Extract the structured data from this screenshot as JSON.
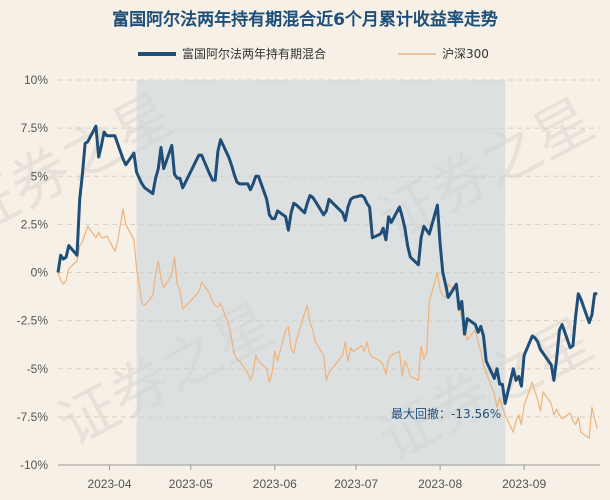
{
  "chart_data": {
    "type": "line",
    "title": "富国阿尔法两年持有期混合近6个月累计收益率走势",
    "watermark": "证券之星",
    "ylim": [
      -10,
      10
    ],
    "y_ticks": [
      10,
      7.5,
      5,
      2.5,
      0,
      -2.5,
      -5,
      -7.5,
      -10
    ],
    "y_tick_labels": [
      "10%",
      "7.5%",
      "5%",
      "2.5%",
      "0%",
      "-2.5%",
      "-5%",
      "-7.5%",
      "-10%"
    ],
    "x_ticks": [
      "2023-04",
      "2023-05",
      "2023-06",
      "2023-07",
      "2023-08",
      "2023-09"
    ],
    "x_tick_dates": [
      "2023-04-01",
      "2023-05-01",
      "2023-06-01",
      "2023-07-01",
      "2023-08-01",
      "2023-09-01"
    ],
    "x_range": [
      "2023-03-13",
      "2023-09-29"
    ],
    "grid": true,
    "legend_position": "top",
    "max_drawdown": {
      "label": "最大回撤：-13.56%",
      "start": "2023-04-11",
      "end": "2023-08-25"
    },
    "series": [
      {
        "name": "富国阿尔法两年持有期混合",
        "color": "#1f4e79",
        "points": [
          [
            "2023-03-13",
            0.0
          ],
          [
            "2023-03-14",
            0.9
          ],
          [
            "2023-03-15",
            0.7
          ],
          [
            "2023-03-16",
            0.8
          ],
          [
            "2023-03-17",
            1.4
          ],
          [
            "2023-03-20",
            0.9
          ],
          [
            "2023-03-21",
            3.8
          ],
          [
            "2023-03-22",
            5.1
          ],
          [
            "2023-03-23",
            6.7
          ],
          [
            "2023-03-24",
            6.8
          ],
          [
            "2023-03-27",
            7.6
          ],
          [
            "2023-03-28",
            6.0
          ],
          [
            "2023-03-29",
            6.6
          ],
          [
            "2023-03-30",
            7.3
          ],
          [
            "2023-03-31",
            7.1
          ],
          [
            "2023-04-03",
            7.1
          ],
          [
            "2023-04-04",
            6.7
          ],
          [
            "2023-04-06",
            5.9
          ],
          [
            "2023-04-07",
            5.6
          ],
          [
            "2023-04-10",
            6.2
          ],
          [
            "2023-04-11",
            5.2
          ],
          [
            "2023-04-12",
            4.9
          ],
          [
            "2023-04-13",
            4.6
          ],
          [
            "2023-04-14",
            4.4
          ],
          [
            "2023-04-17",
            4.1
          ],
          [
            "2023-04-18",
            4.9
          ],
          [
            "2023-04-19",
            5.4
          ],
          [
            "2023-04-20",
            6.5
          ],
          [
            "2023-04-21",
            5.4
          ],
          [
            "2023-04-24",
            6.6
          ],
          [
            "2023-04-25",
            5.1
          ],
          [
            "2023-04-26",
            4.9
          ],
          [
            "2023-04-27",
            4.9
          ],
          [
            "2023-04-28",
            4.4
          ],
          [
            "2023-05-04",
            6.1
          ],
          [
            "2023-05-05",
            6.1
          ],
          [
            "2023-05-08",
            5.1
          ],
          [
            "2023-05-09",
            4.8
          ],
          [
            "2023-05-10",
            4.8
          ],
          [
            "2023-05-11",
            6.3
          ],
          [
            "2023-05-12",
            6.9
          ],
          [
            "2023-05-15",
            6.0
          ],
          [
            "2023-05-16",
            5.6
          ],
          [
            "2023-05-17",
            5.1
          ],
          [
            "2023-05-18",
            4.7
          ],
          [
            "2023-05-19",
            4.6
          ],
          [
            "2023-05-22",
            4.6
          ],
          [
            "2023-05-23",
            4.3
          ],
          [
            "2023-05-24",
            4.6
          ],
          [
            "2023-05-25",
            5.0
          ],
          [
            "2023-05-26",
            5.0
          ],
          [
            "2023-05-29",
            3.8
          ],
          [
            "2023-05-30",
            3.0
          ],
          [
            "2023-05-31",
            2.8
          ],
          [
            "2023-06-01",
            2.8
          ],
          [
            "2023-06-02",
            3.2
          ],
          [
            "2023-06-05",
            2.9
          ],
          [
            "2023-06-06",
            2.2
          ],
          [
            "2023-06-07",
            3.1
          ],
          [
            "2023-06-08",
            3.6
          ],
          [
            "2023-06-09",
            3.5
          ],
          [
            "2023-06-12",
            3.1
          ],
          [
            "2023-06-13",
            3.6
          ],
          [
            "2023-06-14",
            4.0
          ],
          [
            "2023-06-15",
            3.9
          ],
          [
            "2023-06-16",
            3.7
          ],
          [
            "2023-06-19",
            3.0
          ],
          [
            "2023-06-20",
            3.2
          ],
          [
            "2023-06-21",
            3.8
          ],
          [
            "2023-06-26",
            3.1
          ],
          [
            "2023-06-27",
            2.7
          ],
          [
            "2023-06-28",
            3.4
          ],
          [
            "2023-06-29",
            3.8
          ],
          [
            "2023-06-30",
            3.9
          ],
          [
            "2023-07-03",
            4.0
          ],
          [
            "2023-07-04",
            3.9
          ],
          [
            "2023-07-05",
            3.6
          ],
          [
            "2023-07-06",
            3.4
          ],
          [
            "2023-07-07",
            1.8
          ],
          [
            "2023-07-10",
            2.0
          ],
          [
            "2023-07-11",
            2.3
          ],
          [
            "2023-07-12",
            1.7
          ],
          [
            "2023-07-13",
            2.9
          ],
          [
            "2023-07-14",
            2.6
          ],
          [
            "2023-07-17",
            3.4
          ],
          [
            "2023-07-18",
            2.9
          ],
          [
            "2023-07-19",
            2.3
          ],
          [
            "2023-07-20",
            1.4
          ],
          [
            "2023-07-21",
            0.8
          ],
          [
            "2023-07-24",
            0.4
          ],
          [
            "2023-07-25",
            1.8
          ],
          [
            "2023-07-26",
            2.4
          ],
          [
            "2023-07-27",
            2.2
          ],
          [
            "2023-07-28",
            2.0
          ],
          [
            "2023-07-31",
            3.5
          ],
          [
            "2023-08-01",
            1.5
          ],
          [
            "2023-08-02",
            0.0
          ],
          [
            "2023-08-03",
            -0.6
          ],
          [
            "2023-08-04",
            -1.3
          ],
          [
            "2023-08-07",
            -0.6
          ],
          [
            "2023-08-08",
            -1.9
          ],
          [
            "2023-08-09",
            -1.5
          ],
          [
            "2023-08-10",
            -3.2
          ],
          [
            "2023-08-11",
            -2.4
          ],
          [
            "2023-08-14",
            -2.7
          ],
          [
            "2023-08-15",
            -3.1
          ],
          [
            "2023-08-16",
            -2.8
          ],
          [
            "2023-08-17",
            -3.3
          ],
          [
            "2023-08-18",
            -4.6
          ],
          [
            "2023-08-21",
            -5.5
          ],
          [
            "2023-08-22",
            -5.0
          ],
          [
            "2023-08-23",
            -5.8
          ],
          [
            "2023-08-24",
            -5.8
          ],
          [
            "2023-08-25",
            -6.8
          ],
          [
            "2023-08-28",
            -5.0
          ],
          [
            "2023-08-29",
            -5.6
          ],
          [
            "2023-08-30",
            -5.4
          ],
          [
            "2023-08-31",
            -5.9
          ],
          [
            "2023-09-01",
            -4.3
          ],
          [
            "2023-09-04",
            -3.3
          ],
          [
            "2023-09-05",
            -3.4
          ],
          [
            "2023-09-06",
            -3.6
          ],
          [
            "2023-09-07",
            -4.0
          ],
          [
            "2023-09-08",
            -4.2
          ],
          [
            "2023-09-11",
            -4.8
          ],
          [
            "2023-09-12",
            -5.6
          ],
          [
            "2023-09-13",
            -4.5
          ],
          [
            "2023-09-14",
            -3.0
          ],
          [
            "2023-09-15",
            -2.7
          ],
          [
            "2023-09-18",
            -3.9
          ],
          [
            "2023-09-19",
            -3.8
          ],
          [
            "2023-09-20",
            -2.3
          ],
          [
            "2023-09-21",
            -1.1
          ],
          [
            "2023-09-22",
            -1.4
          ],
          [
            "2023-09-25",
            -2.6
          ],
          [
            "2023-09-26",
            -2.2
          ],
          [
            "2023-09-27",
            -1.1
          ],
          [
            "2023-09-28",
            -1.1
          ]
        ]
      },
      {
        "name": "沪深300",
        "color": "#f0b27a",
        "points": [
          [
            "2023-03-13",
            0.0
          ],
          [
            "2023-03-14",
            -0.4
          ],
          [
            "2023-03-15",
            -0.6
          ],
          [
            "2023-03-16",
            -0.4
          ],
          [
            "2023-03-17",
            0.2
          ],
          [
            "2023-03-20",
            0.6
          ],
          [
            "2023-03-21",
            1.4
          ],
          [
            "2023-03-22",
            1.6
          ],
          [
            "2023-03-23",
            2.0
          ],
          [
            "2023-03-24",
            2.4
          ],
          [
            "2023-03-27",
            1.8
          ],
          [
            "2023-03-28",
            2.1
          ],
          [
            "2023-03-29",
            1.8
          ],
          [
            "2023-03-30",
            1.8
          ],
          [
            "2023-03-31",
            1.9
          ],
          [
            "2023-04-03",
            1.1
          ],
          [
            "2023-04-04",
            1.6
          ],
          [
            "2023-04-06",
            3.3
          ],
          [
            "2023-04-07",
            2.5
          ],
          [
            "2023-04-10",
            1.7
          ],
          [
            "2023-04-11",
            0.2
          ],
          [
            "2023-04-12",
            -0.7
          ],
          [
            "2023-04-13",
            -1.6
          ],
          [
            "2023-04-14",
            -1.7
          ],
          [
            "2023-04-17",
            -1.2
          ],
          [
            "2023-04-18",
            -0.1
          ],
          [
            "2023-04-19",
            0.6
          ],
          [
            "2023-04-20",
            -0.3
          ],
          [
            "2023-04-21",
            -0.8
          ],
          [
            "2023-04-24",
            -0.1
          ],
          [
            "2023-04-25",
            0.8
          ],
          [
            "2023-04-26",
            -0.6
          ],
          [
            "2023-04-27",
            -0.9
          ],
          [
            "2023-04-28",
            -1.9
          ],
          [
            "2023-05-04",
            -1.0
          ],
          [
            "2023-05-05",
            -0.5
          ],
          [
            "2023-05-08",
            -1.1
          ],
          [
            "2023-05-09",
            -1.5
          ],
          [
            "2023-05-10",
            -1.7
          ],
          [
            "2023-05-11",
            -1.8
          ],
          [
            "2023-05-12",
            -1.6
          ],
          [
            "2023-05-15",
            -2.7
          ],
          [
            "2023-05-16",
            -3.4
          ],
          [
            "2023-05-17",
            -4.2
          ],
          [
            "2023-05-18",
            -4.5
          ],
          [
            "2023-05-19",
            -4.6
          ],
          [
            "2023-05-22",
            -5.2
          ],
          [
            "2023-05-23",
            -5.6
          ],
          [
            "2023-05-24",
            -5.2
          ],
          [
            "2023-05-25",
            -4.3
          ],
          [
            "2023-05-26",
            -4.6
          ],
          [
            "2023-05-29",
            -5.0
          ],
          [
            "2023-05-30",
            -5.7
          ],
          [
            "2023-05-31",
            -5.2
          ],
          [
            "2023-06-01",
            -4.1
          ],
          [
            "2023-06-02",
            -4.6
          ],
          [
            "2023-06-05",
            -3.0
          ],
          [
            "2023-06-06",
            -2.8
          ],
          [
            "2023-06-07",
            -4.0
          ],
          [
            "2023-06-08",
            -4.2
          ],
          [
            "2023-06-09",
            -3.5
          ],
          [
            "2023-06-12",
            -2.1
          ],
          [
            "2023-06-13",
            -1.7
          ],
          [
            "2023-06-14",
            -2.6
          ],
          [
            "2023-06-15",
            -3.0
          ],
          [
            "2023-06-16",
            -3.6
          ],
          [
            "2023-06-19",
            -4.3
          ],
          [
            "2023-06-20",
            -5.6
          ],
          [
            "2023-06-21",
            -5.2
          ],
          [
            "2023-06-26",
            -4.3
          ],
          [
            "2023-06-27",
            -3.6
          ],
          [
            "2023-06-28",
            -4.6
          ],
          [
            "2023-06-29",
            -3.9
          ],
          [
            "2023-06-30",
            -4.1
          ],
          [
            "2023-07-03",
            -3.8
          ],
          [
            "2023-07-04",
            -4.1
          ],
          [
            "2023-07-05",
            -3.6
          ],
          [
            "2023-07-06",
            -4.2
          ],
          [
            "2023-07-07",
            -4.4
          ],
          [
            "2023-07-10",
            -4.6
          ],
          [
            "2023-07-11",
            -4.8
          ],
          [
            "2023-07-12",
            -5.3
          ],
          [
            "2023-07-13",
            -4.5
          ],
          [
            "2023-07-14",
            -4.3
          ],
          [
            "2023-07-17",
            -4.1
          ],
          [
            "2023-07-18",
            -5.4
          ],
          [
            "2023-07-19",
            -4.6
          ],
          [
            "2023-07-20",
            -4.9
          ],
          [
            "2023-07-21",
            -5.4
          ],
          [
            "2023-07-24",
            -5.6
          ],
          [
            "2023-07-25",
            -3.8
          ],
          [
            "2023-07-26",
            -4.5
          ],
          [
            "2023-07-27",
            -4.2
          ],
          [
            "2023-07-28",
            -1.5
          ],
          [
            "2023-07-31",
            0.0
          ],
          [
            "2023-08-01",
            -0.9
          ],
          [
            "2023-08-02",
            -1.2
          ],
          [
            "2023-08-03",
            -1.3
          ],
          [
            "2023-08-04",
            -0.6
          ],
          [
            "2023-08-07",
            -1.0
          ],
          [
            "2023-08-08",
            -1.5
          ],
          [
            "2023-08-09",
            -2.4
          ],
          [
            "2023-08-10",
            -2.6
          ],
          [
            "2023-08-11",
            -3.5
          ],
          [
            "2023-08-14",
            -3.0
          ],
          [
            "2023-08-15",
            -3.6
          ],
          [
            "2023-08-16",
            -4.1
          ],
          [
            "2023-08-17",
            -4.8
          ],
          [
            "2023-08-18",
            -5.2
          ],
          [
            "2023-08-21",
            -6.3
          ],
          [
            "2023-08-22",
            -7.0
          ],
          [
            "2023-08-23",
            -6.5
          ],
          [
            "2023-08-24",
            -7.0
          ],
          [
            "2023-08-25",
            -7.4
          ],
          [
            "2023-08-28",
            -8.3
          ],
          [
            "2023-08-29",
            -7.7
          ],
          [
            "2023-08-30",
            -7.4
          ],
          [
            "2023-08-31",
            -7.9
          ],
          [
            "2023-09-01",
            -6.9
          ],
          [
            "2023-09-04",
            -5.7
          ],
          [
            "2023-09-05",
            -6.2
          ],
          [
            "2023-09-06",
            -6.6
          ],
          [
            "2023-09-07",
            -7.2
          ],
          [
            "2023-09-08",
            -6.2
          ],
          [
            "2023-09-11",
            -6.8
          ],
          [
            "2023-09-12",
            -7.4
          ],
          [
            "2023-09-13",
            -7.1
          ],
          [
            "2023-09-14",
            -7.4
          ],
          [
            "2023-09-15",
            -7.6
          ],
          [
            "2023-09-18",
            -7.3
          ],
          [
            "2023-09-19",
            -7.7
          ],
          [
            "2023-09-20",
            -7.9
          ],
          [
            "2023-09-21",
            -7.5
          ],
          [
            "2023-09-22",
            -8.3
          ],
          [
            "2023-09-25",
            -8.6
          ],
          [
            "2023-09-26",
            -7.0
          ],
          [
            "2023-09-27",
            -7.6
          ],
          [
            "2023-09-28",
            -8.1
          ]
        ]
      }
    ]
  }
}
